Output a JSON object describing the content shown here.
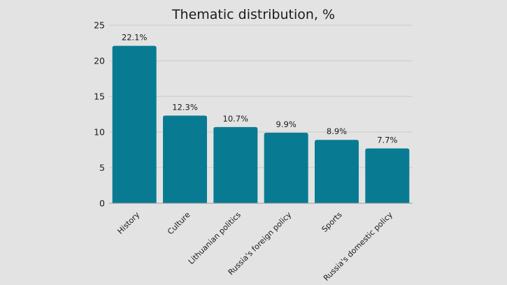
{
  "chart_data": {
    "type": "bar",
    "title": "Thematic distribution, %",
    "categories": [
      "History",
      "Culture",
      "Lithuanian politics",
      "Russia's foreign policy",
      "Sports",
      "Russia's domestic policy"
    ],
    "values": [
      22.1,
      12.3,
      10.7,
      9.9,
      8.9,
      7.7
    ],
    "data_labels": [
      "22.1%",
      "12.3%",
      "10.7%",
      "9.9%",
      "8.9%",
      "7.7%"
    ],
    "ylim": [
      0,
      25
    ],
    "yticks": [
      0,
      5,
      10,
      15,
      20,
      25
    ],
    "xlabel": "",
    "ylabel": "",
    "grid": true,
    "legend": "none"
  },
  "colors": {
    "bar": "#087b93",
    "grid": "#c9c9c9",
    "background": "#e3e3e3"
  }
}
